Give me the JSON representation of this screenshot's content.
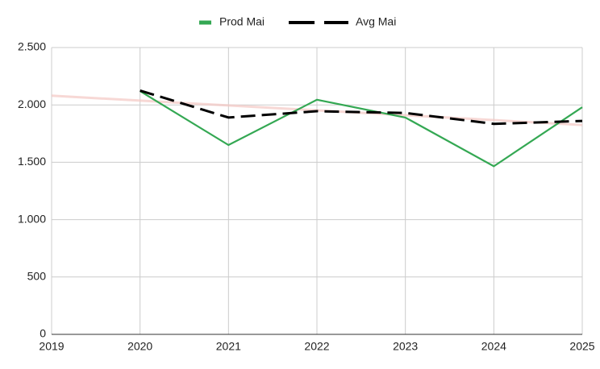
{
  "chart_data": {
    "type": "line",
    "x": [
      2020,
      2021,
      2022,
      2023,
      2024,
      2025
    ],
    "series": [
      {
        "name": "Prod Mai",
        "color": "#34a853",
        "dash": false,
        "values": [
          2120,
          1650,
          2045,
          1890,
          1465,
          1980
        ]
      },
      {
        "name": "Avg Mai",
        "color": "#000000",
        "dash": true,
        "values": [
          2125,
          1890,
          1945,
          1930,
          1835,
          1860
        ]
      },
      {
        "color": "#f4c7c3",
        "dash": false,
        "x": [
          2019,
          2025
        ],
        "values": [
          2080,
          1825
        ]
      }
    ],
    "xlim": [
      2019,
      2025
    ],
    "xticks": [
      2019,
      2020,
      2021,
      2022,
      2023,
      2024,
      2025
    ],
    "ylim": [
      0,
      2500
    ],
    "yticks": [
      0,
      500,
      {
        "value": 1000,
        "label": "1.000"
      },
      {
        "value": 1500,
        "label": "1.500"
      },
      {
        "value": 2000,
        "label": "2.000"
      },
      {
        "value": 2500,
        "label": "2.500"
      }
    ],
    "grid": true,
    "legend": "top"
  }
}
